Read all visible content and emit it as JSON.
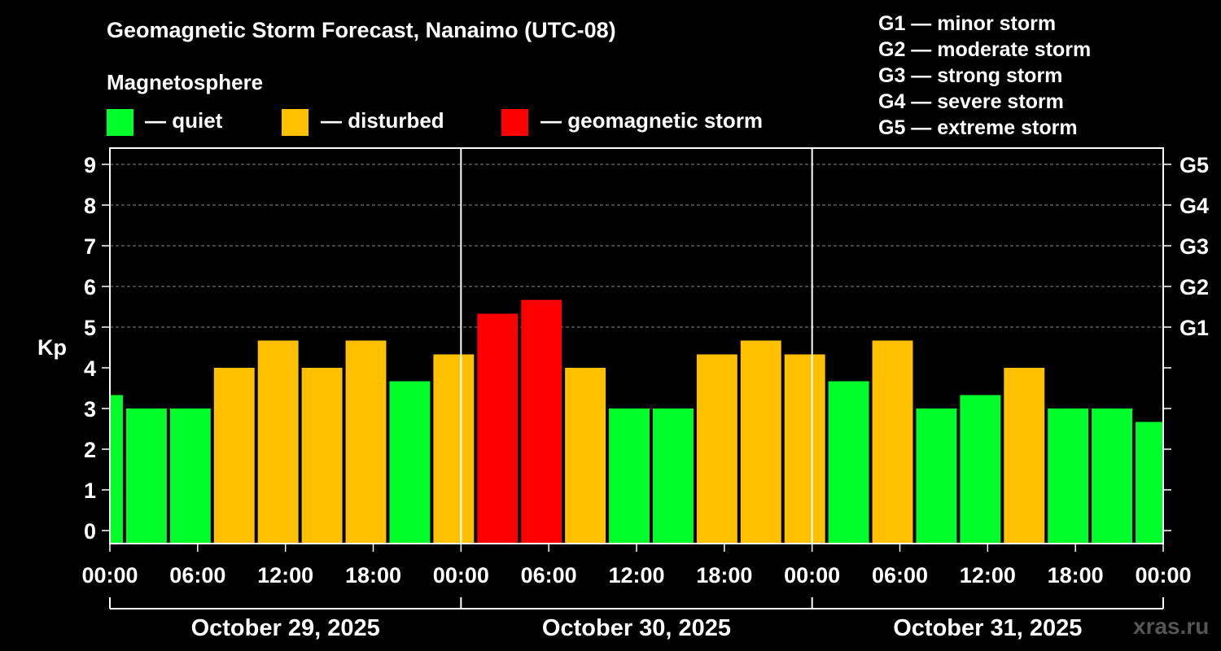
{
  "chart_data": {
    "type": "bar",
    "title": "Geomagnetic Storm Forecast, Nanaimo (UTC-08)",
    "ylabel": "Kp",
    "ylim": [
      0,
      9
    ],
    "y_ticks": [
      "0",
      "1",
      "2",
      "3",
      "4",
      "5",
      "6",
      "7",
      "8",
      "9"
    ],
    "right_axis_labels": [
      {
        "kp": 5,
        "label": "G1"
      },
      {
        "kp": 6,
        "label": "G2"
      },
      {
        "kp": 7,
        "label": "G3"
      },
      {
        "kp": 8,
        "label": "G4"
      },
      {
        "kp": 9,
        "label": "G5"
      }
    ],
    "x_range_hours": [
      0,
      72
    ],
    "x_ticks": [
      {
        "hour": 0,
        "label": "00:00"
      },
      {
        "hour": 6,
        "label": "06:00"
      },
      {
        "hour": 12,
        "label": "12:00"
      },
      {
        "hour": 18,
        "label": "18:00"
      },
      {
        "hour": 24,
        "label": "00:00"
      },
      {
        "hour": 30,
        "label": "06:00"
      },
      {
        "hour": 36,
        "label": "12:00"
      },
      {
        "hour": 42,
        "label": "18:00"
      },
      {
        "hour": 48,
        "label": "00:00"
      },
      {
        "hour": 54,
        "label": "06:00"
      },
      {
        "hour": 60,
        "label": "12:00"
      },
      {
        "hour": 66,
        "label": "18:00"
      },
      {
        "hour": 72,
        "label": "00:00"
      }
    ],
    "days": [
      {
        "label": "October 29, 2025",
        "start_hour": 0,
        "end_hour": 24
      },
      {
        "label": "October 30, 2025",
        "start_hour": 24,
        "end_hour": 48
      },
      {
        "label": "October 31, 2025",
        "start_hour": 48,
        "end_hour": 72
      }
    ],
    "bars": [
      {
        "start_hour": 0,
        "end_hour": 1,
        "kp": 3.33,
        "status": "quiet"
      },
      {
        "start_hour": 1,
        "end_hour": 4,
        "kp": 3.0,
        "status": "quiet"
      },
      {
        "start_hour": 4,
        "end_hour": 7,
        "kp": 3.0,
        "status": "quiet"
      },
      {
        "start_hour": 7,
        "end_hour": 10,
        "kp": 4.0,
        "status": "disturbed"
      },
      {
        "start_hour": 10,
        "end_hour": 13,
        "kp": 4.67,
        "status": "disturbed"
      },
      {
        "start_hour": 13,
        "end_hour": 16,
        "kp": 4.0,
        "status": "disturbed"
      },
      {
        "start_hour": 16,
        "end_hour": 19,
        "kp": 4.67,
        "status": "disturbed"
      },
      {
        "start_hour": 19,
        "end_hour": 22,
        "kp": 3.67,
        "status": "quiet"
      },
      {
        "start_hour": 22,
        "end_hour": 25,
        "kp": 4.33,
        "status": "disturbed"
      },
      {
        "start_hour": 25,
        "end_hour": 28,
        "kp": 5.33,
        "status": "storm"
      },
      {
        "start_hour": 28,
        "end_hour": 31,
        "kp": 5.67,
        "status": "storm"
      },
      {
        "start_hour": 31,
        "end_hour": 34,
        "kp": 4.0,
        "status": "disturbed"
      },
      {
        "start_hour": 34,
        "end_hour": 37,
        "kp": 3.0,
        "status": "quiet"
      },
      {
        "start_hour": 37,
        "end_hour": 40,
        "kp": 3.0,
        "status": "quiet"
      },
      {
        "start_hour": 40,
        "end_hour": 43,
        "kp": 4.33,
        "status": "disturbed"
      },
      {
        "start_hour": 43,
        "end_hour": 46,
        "kp": 4.67,
        "status": "disturbed"
      },
      {
        "start_hour": 46,
        "end_hour": 49,
        "kp": 4.33,
        "status": "disturbed"
      },
      {
        "start_hour": 49,
        "end_hour": 52,
        "kp": 3.67,
        "status": "quiet"
      },
      {
        "start_hour": 52,
        "end_hour": 55,
        "kp": 4.67,
        "status": "disturbed"
      },
      {
        "start_hour": 55,
        "end_hour": 58,
        "kp": 3.0,
        "status": "quiet"
      },
      {
        "start_hour": 58,
        "end_hour": 61,
        "kp": 3.33,
        "status": "quiet"
      },
      {
        "start_hour": 61,
        "end_hour": 64,
        "kp": 4.0,
        "status": "disturbed"
      },
      {
        "start_hour": 64,
        "end_hour": 67,
        "kp": 3.0,
        "status": "quiet"
      },
      {
        "start_hour": 67,
        "end_hour": 70,
        "kp": 3.0,
        "status": "quiet"
      },
      {
        "start_hour": 70,
        "end_hour": 72,
        "kp": 2.67,
        "status": "quiet"
      }
    ],
    "colors": {
      "quiet": "#00ff2a",
      "disturbed": "#ffc000",
      "storm": "#ff0000",
      "grid": "#888888",
      "axis": "#ffffff"
    }
  },
  "legend": {
    "title": "Magnetosphere",
    "items": [
      {
        "label": "— quiet",
        "color": "#00ff2a"
      },
      {
        "label": "— disturbed",
        "color": "#ffc000"
      },
      {
        "label": "— geomagnetic storm",
        "color": "#ff0000"
      }
    ]
  },
  "g_scale": [
    "G1 — minor storm",
    "G2 — moderate storm",
    "G3 — strong storm",
    "G4 — severe storm",
    "G5 — extreme storm"
  ],
  "watermark": "xras.ru"
}
